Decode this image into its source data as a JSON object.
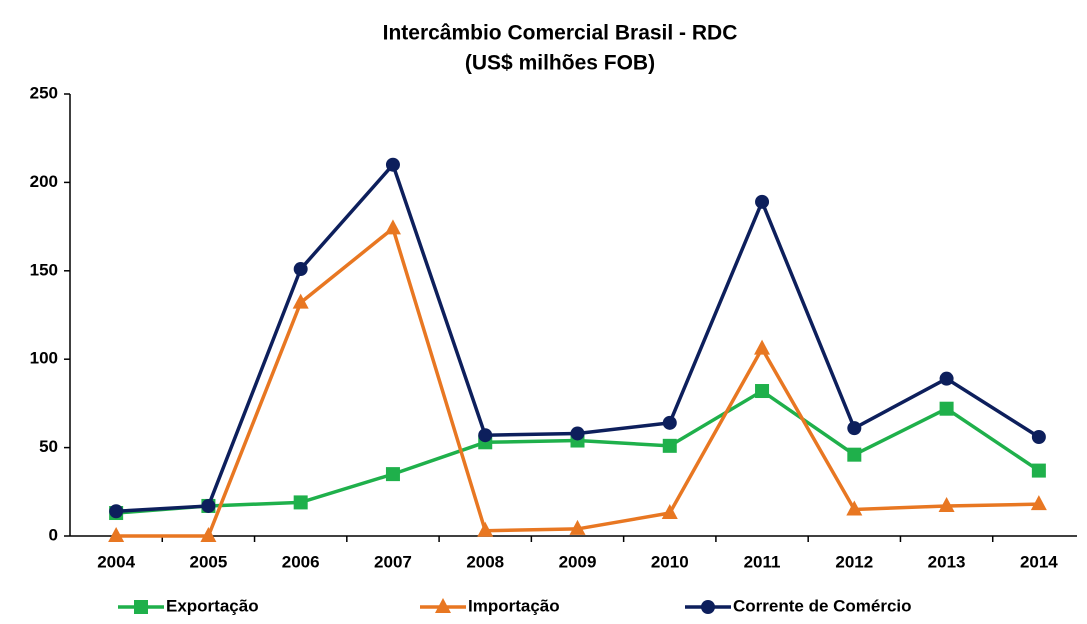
{
  "chart_data": {
    "type": "line",
    "title": "Intercâmbio Comercial Brasil - RDC",
    "subtitle": "(US$ milhões FOB)",
    "categories": [
      "2004",
      "2005",
      "2006",
      "2007",
      "2008",
      "2009",
      "2010",
      "2011",
      "2012",
      "2013",
      "2014"
    ],
    "series": [
      {
        "name": "Exportação",
        "color": "#1fb04b",
        "marker": "square",
        "values": [
          13,
          17,
          19,
          35,
          53,
          54,
          51,
          82,
          46,
          72,
          37
        ]
      },
      {
        "name": "Importação",
        "color": "#e87722",
        "marker": "triangle",
        "values": [
          0,
          0,
          132,
          174,
          3,
          4,
          13,
          106,
          15,
          17,
          18
        ]
      },
      {
        "name": "Corrente de Comércio",
        "color": "#0d1f5c",
        "marker": "circle",
        "values": [
          14,
          17,
          151,
          210,
          57,
          58,
          64,
          189,
          61,
          89,
          56
        ]
      }
    ],
    "ylim": [
      0,
      250
    ],
    "yticks": [
      0,
      50,
      100,
      150,
      200,
      250
    ],
    "grid": false,
    "legend": "bottom"
  }
}
